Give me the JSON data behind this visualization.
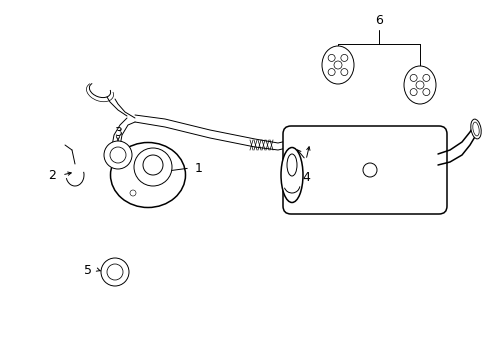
{
  "bg_color": "#ffffff",
  "line_color": "#000000",
  "lw_thin": 0.7,
  "lw_med": 1.1,
  "lw_thick": 1.6
}
